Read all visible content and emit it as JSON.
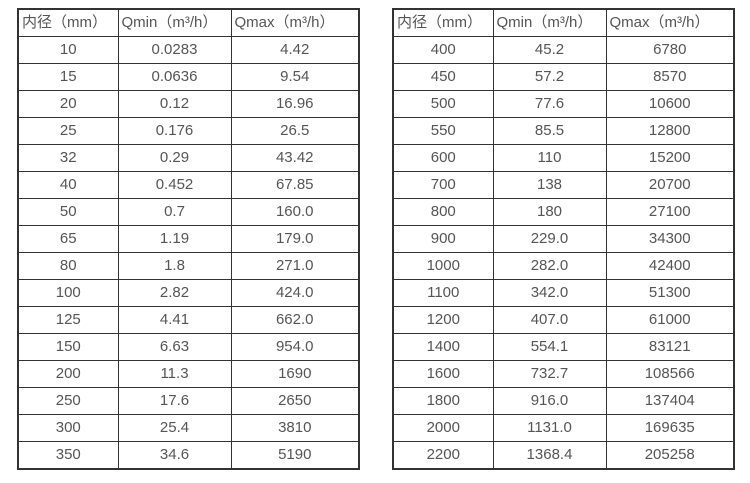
{
  "colors": {
    "border": "#333333",
    "text": "#555555",
    "background": "#ffffff"
  },
  "tables": [
    {
      "name": "small-diameters",
      "headers": [
        "内径（mm）",
        "Qmin（m³/h）",
        "Qmax（m³/h）"
      ],
      "rows": [
        [
          "10",
          "0.0283",
          "4.42"
        ],
        [
          "15",
          "0.0636",
          "9.54"
        ],
        [
          "20",
          "0.12",
          "16.96"
        ],
        [
          "25",
          "0.176",
          "26.5"
        ],
        [
          "32",
          "0.29",
          "43.42"
        ],
        [
          "40",
          "0.452",
          "67.85"
        ],
        [
          "50",
          "0.7",
          "160.0"
        ],
        [
          "65",
          "1.19",
          "179.0"
        ],
        [
          "80",
          "1.8",
          "271.0"
        ],
        [
          "100",
          "2.82",
          "424.0"
        ],
        [
          "125",
          "4.41",
          "662.0"
        ],
        [
          "150",
          "6.63",
          "954.0"
        ],
        [
          "200",
          "11.3",
          "1690"
        ],
        [
          "250",
          "17.6",
          "2650"
        ],
        [
          "300",
          "25.4",
          "3810"
        ],
        [
          "350",
          "34.6",
          "5190"
        ]
      ]
    },
    {
      "name": "large-diameters",
      "headers": [
        "内径（mm）",
        "Qmin（m³/h）",
        "Qmax（m³/h）"
      ],
      "rows": [
        [
          "400",
          "45.2",
          "6780"
        ],
        [
          "450",
          "57.2",
          "8570"
        ],
        [
          "500",
          "77.6",
          "10600"
        ],
        [
          "550",
          "85.5",
          "12800"
        ],
        [
          "600",
          "110",
          "15200"
        ],
        [
          "700",
          "138",
          "20700"
        ],
        [
          "800",
          "180",
          "27100"
        ],
        [
          "900",
          "229.0",
          "34300"
        ],
        [
          "1000",
          "282.0",
          "42400"
        ],
        [
          "1100",
          "342.0",
          "51300"
        ],
        [
          "1200",
          "407.0",
          "61000"
        ],
        [
          "1400",
          "554.1",
          "83121"
        ],
        [
          "1600",
          "732.7",
          "108566"
        ],
        [
          "1800",
          "916.0",
          "137404"
        ],
        [
          "2000",
          "1131.0",
          "169635"
        ],
        [
          "2200",
          "1368.4",
          "205258"
        ]
      ]
    }
  ]
}
